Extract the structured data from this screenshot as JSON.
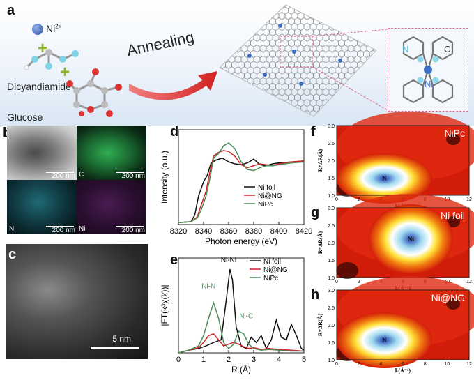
{
  "panel_a": {
    "label": "a",
    "ni_ion": "Ni",
    "ni_charge": "2+",
    "dicyandiamide": "Dicyandiamide",
    "glucose": "Glucose",
    "plus": "+",
    "annealing": "Annealing",
    "inset_n": "N",
    "inset_c": "C",
    "inset_ni": "Ni"
  },
  "panel_b": {
    "label": "b",
    "scale1": "200 nm",
    "scale2": "200 nm",
    "scale3": "200 nm",
    "scale4": "200 nm",
    "c_label": "C",
    "n_label": "N",
    "ni_label": "Ni"
  },
  "panel_c": {
    "label": "c",
    "scale": "5 nm"
  },
  "panel_d": {
    "label": "d"
  },
  "panel_e": {
    "label": "e"
  },
  "panel_f": {
    "label": "f",
    "title": "NiPc",
    "peak": "N"
  },
  "panel_g": {
    "label": "g",
    "title": "Ni foil",
    "peak": "Ni"
  },
  "panel_h": {
    "label": "h",
    "title": "Ni@NG",
    "peak": "N"
  },
  "colors": {
    "ni_foil": "#111111",
    "ni_ng": "#cc2222",
    "nipc": "#4a8a5a"
  },
  "chart_data": [
    {
      "type": "line",
      "panel": "d",
      "xlabel": "Photon energy (eV)",
      "ylabel": "Intensity (a.u.)",
      "xlim": [
        8320,
        8420
      ],
      "xticks": [
        "8320",
        "8340",
        "8360",
        "8380",
        "8400",
        "8420"
      ],
      "legend": "bottom-right",
      "series": [
        {
          "name": "Ni foil",
          "x": [
            8320,
            8330,
            8333,
            8336,
            8340,
            8343,
            8346,
            8350,
            8355,
            8360,
            8365,
            8370,
            8375,
            8380,
            8385,
            8390,
            8395,
            8400,
            8410,
            8420
          ],
          "y": [
            0.02,
            0.03,
            0.1,
            0.3,
            0.45,
            0.52,
            0.65,
            0.68,
            0.7,
            0.66,
            0.64,
            0.63,
            0.65,
            0.69,
            0.63,
            0.62,
            0.64,
            0.65,
            0.66,
            0.67
          ]
        },
        {
          "name": "Ni@NG",
          "x": [
            8320,
            8330,
            8335,
            8338,
            8342,
            8345,
            8348,
            8352,
            8356,
            8360,
            8365,
            8370,
            8375,
            8380,
            8385,
            8390,
            8395,
            8400,
            8410,
            8420
          ],
          "y": [
            0.02,
            0.03,
            0.08,
            0.2,
            0.35,
            0.55,
            0.72,
            0.76,
            0.78,
            0.77,
            0.72,
            0.63,
            0.6,
            0.62,
            0.64,
            0.63,
            0.62,
            0.64,
            0.66,
            0.67
          ]
        },
        {
          "name": "NiPc",
          "x": [
            8320,
            8330,
            8335,
            8338,
            8342,
            8345,
            8348,
            8352,
            8356,
            8360,
            8365,
            8370,
            8375,
            8380,
            8385,
            8390,
            8395,
            8400,
            8410,
            8420
          ],
          "y": [
            0.02,
            0.03,
            0.07,
            0.15,
            0.3,
            0.48,
            0.7,
            0.75,
            0.83,
            0.86,
            0.8,
            0.66,
            0.58,
            0.57,
            0.6,
            0.62,
            0.62,
            0.63,
            0.65,
            0.66
          ]
        }
      ]
    },
    {
      "type": "line",
      "panel": "e",
      "xlabel": "R (Å)",
      "ylabel": "|FT(k³χ(k))|",
      "xlim": [
        0,
        5
      ],
      "xticks": [
        "0",
        "1",
        "2",
        "3",
        "4",
        "5"
      ],
      "legend": "top-right",
      "annotations": [
        "Ni-Ni",
        "Ni-N",
        "Ni-C"
      ],
      "series": [
        {
          "name": "Ni foil",
          "x": [
            0,
            0.4,
            0.8,
            1.1,
            1.4,
            1.7,
            1.9,
            2.05,
            2.15,
            2.3,
            2.5,
            2.7,
            2.9,
            3.1,
            3.3,
            3.5,
            3.7,
            3.9,
            4.1,
            4.3,
            4.5,
            4.7,
            4.9,
            5.0
          ],
          "y": [
            0,
            0.03,
            0.05,
            0.08,
            0.12,
            0.15,
            0.6,
            0.97,
            0.85,
            0.3,
            0.08,
            0.05,
            0.18,
            0.12,
            0.2,
            0.05,
            0.15,
            0.38,
            0.18,
            0.15,
            0.33,
            0.2,
            0.05,
            0.03
          ]
        },
        {
          "name": "Ni@NG",
          "x": [
            0,
            0.4,
            0.8,
            1.0,
            1.2,
            1.4,
            1.6,
            1.8,
            2.0,
            2.2,
            2.4,
            2.6,
            2.8,
            3.0,
            3.3,
            3.6,
            4.0,
            4.5,
            5.0
          ],
          "y": [
            0,
            0.03,
            0.06,
            0.12,
            0.2,
            0.22,
            0.15,
            0.08,
            0.1,
            0.12,
            0.1,
            0.07,
            0.05,
            0.06,
            0.04,
            0.05,
            0.04,
            0.03,
            0.02
          ]
        },
        {
          "name": "NiPc",
          "x": [
            0,
            0.4,
            0.8,
            1.0,
            1.2,
            1.4,
            1.6,
            1.8,
            2.0,
            2.2,
            2.4,
            2.6,
            2.8,
            3.0,
            3.3,
            3.6,
            4.0,
            4.5,
            5.0
          ],
          "y": [
            0,
            0.03,
            0.08,
            0.2,
            0.4,
            0.58,
            0.4,
            0.12,
            0.05,
            0.1,
            0.25,
            0.22,
            0.1,
            0.05,
            0.03,
            0.04,
            0.03,
            0.02,
            0.02
          ]
        }
      ]
    },
    {
      "type": "heatmap",
      "panel": "f",
      "xlabel": "k(Å⁻¹)",
      "ylabel": "R+ΔR(Å)",
      "xticks": [
        "0",
        "2",
        "4",
        "6",
        "8",
        "10",
        "12"
      ],
      "yticks": [
        "1.0",
        "1.5",
        "2.0",
        "2.5",
        "3.0"
      ]
    },
    {
      "type": "heatmap",
      "panel": "g",
      "xlabel": "k(Å⁻¹)",
      "ylabel": "R+ΔR(Å)",
      "xticks": [
        "0",
        "2",
        "4",
        "6",
        "8",
        "10",
        "12"
      ],
      "yticks": [
        "1.0",
        "1.5",
        "2.0",
        "2.5",
        "3.0"
      ]
    },
    {
      "type": "heatmap",
      "panel": "h",
      "xlabel": "k(Å⁻¹)",
      "ylabel": "R+ΔR(Å)",
      "xticks": [
        "0",
        "2",
        "4",
        "6",
        "8",
        "10",
        "12"
      ],
      "yticks": [
        "1.0",
        "1.5",
        "2.0",
        "2.5",
        "3.0"
      ]
    }
  ]
}
